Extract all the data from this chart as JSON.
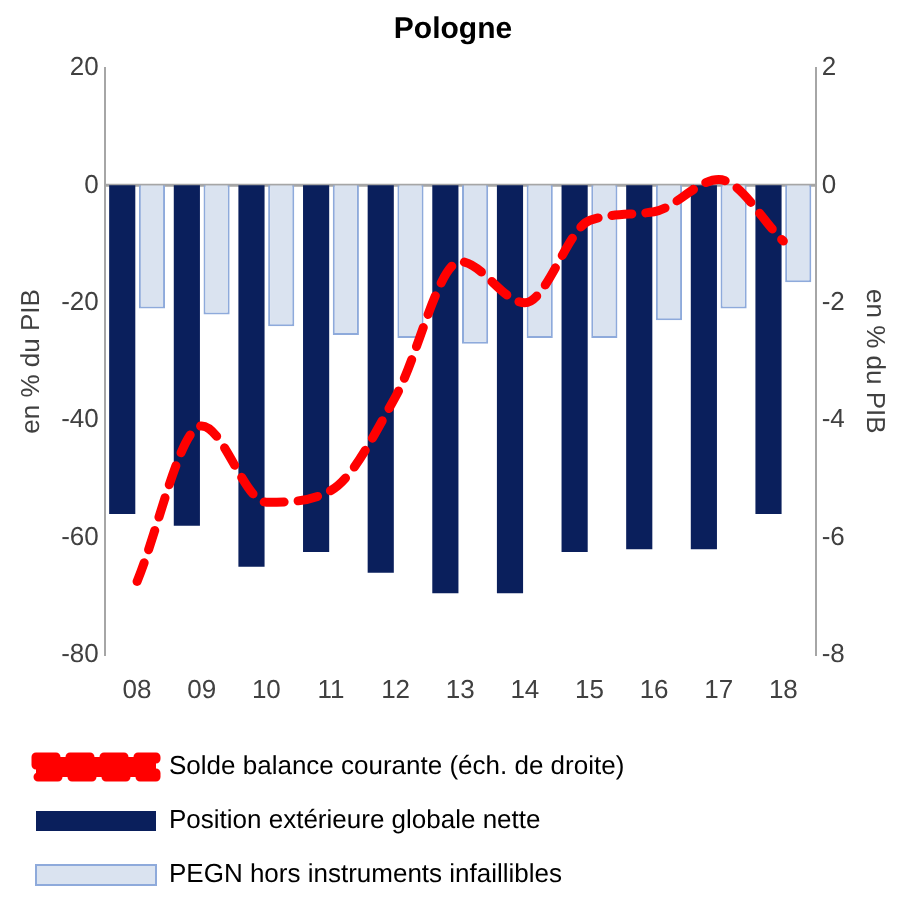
{
  "chart_data": {
    "type": "bar",
    "title": "Pologne",
    "ylabel": "en % du PIB",
    "y2label": "en % du PIB",
    "categories": [
      "08",
      "09",
      "10",
      "11",
      "12",
      "13",
      "14",
      "15",
      "16",
      "17",
      "18"
    ],
    "series": [
      {
        "name": "Position extérieure globale nette",
        "color": "#0a1f5c",
        "values": [
          -56,
          -58,
          -65,
          -62.5,
          -66,
          -69.5,
          -69.5,
          -62.5,
          -62,
          -62,
          -56
        ]
      },
      {
        "name": "PEGN hors instruments infaillibles",
        "color": "#dae3f0",
        "values": [
          -21,
          -22,
          -24,
          -25.5,
          -26,
          -27,
          -26,
          -26,
          -23,
          -21,
          -16.5
        ]
      },
      {
        "name": "Solde balance courante (éch. de droite)",
        "type": "line",
        "axis": "y2",
        "color": "#ff0000",
        "line_style": "dashed",
        "values": [
          -6.75,
          -4.1,
          -5.4,
          -5.2,
          -3.6,
          -1.3,
          -2.0,
          -0.6,
          -0.45,
          0.1,
          -0.95
        ]
      }
    ],
    "ylim": [
      -80,
      20
    ],
    "yticks": [
      -80,
      -60,
      -40,
      -20,
      0,
      20
    ],
    "y2lim": [
      -8,
      2
    ],
    "y2ticks": [
      -8,
      -6,
      -4,
      -2,
      0,
      2
    ],
    "ref_lines": [
      {
        "axis": "y",
        "value": 0,
        "color": "#a6a6a6"
      }
    ],
    "grid": false,
    "legend": "bottom",
    "marker": "none"
  }
}
